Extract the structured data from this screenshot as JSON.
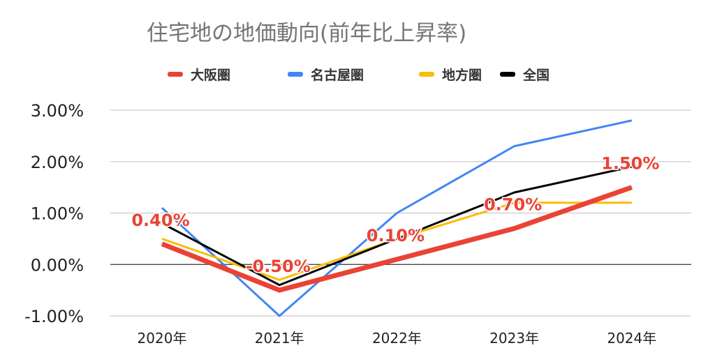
{
  "chart_data": {
    "type": "line",
    "title": "住宅地の地価動向(前年比上昇率)",
    "categories": [
      "2020年",
      "2021年",
      "2022年",
      "2023年",
      "2024年"
    ],
    "ylim": [
      -1,
      3
    ],
    "yticks": [
      "-1.00%",
      "0.00%",
      "1.00%",
      "2.00%",
      "3.00%"
    ],
    "ytick_values": [
      -1,
      0,
      1,
      2,
      3
    ],
    "grid": true,
    "legend_position": "top",
    "series": [
      {
        "name": "大阪圏",
        "color": "#ea4335",
        "values": [
          0.4,
          -0.5,
          0.1,
          0.7,
          1.5
        ],
        "data_labels": [
          "0.40%",
          "-0.50%",
          "0.10%",
          "0.70%",
          "1.50%"
        ]
      },
      {
        "name": "名古屋圏",
        "color": "#4285f4",
        "values": [
          1.1,
          -1.0,
          1.0,
          2.3,
          2.8
        ]
      },
      {
        "name": "地方圏",
        "color": "#fbbc04",
        "values": [
          0.5,
          -0.3,
          0.5,
          1.2,
          1.2
        ]
      },
      {
        "name": "全国",
        "color": "#000000",
        "values": [
          0.8,
          -0.4,
          0.5,
          1.4,
          1.9
        ]
      }
    ]
  }
}
